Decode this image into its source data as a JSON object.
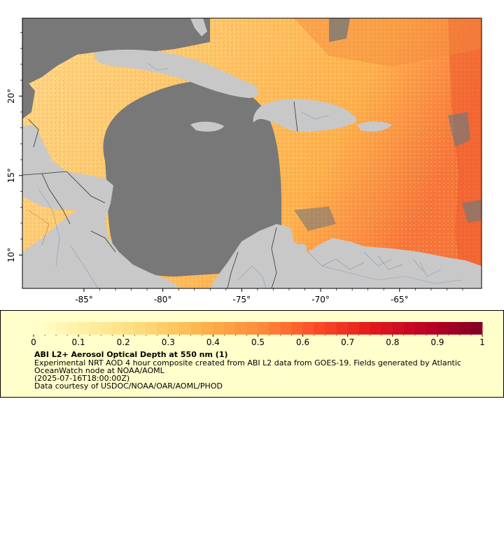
{
  "map": {
    "lon_ticks": [
      {
        "value": -85,
        "label": "-85°"
      },
      {
        "value": -80,
        "label": "-80°"
      },
      {
        "value": -75,
        "label": "-75°"
      },
      {
        "value": -70,
        "label": "-70°"
      },
      {
        "value": -65,
        "label": "-65°"
      }
    ],
    "lat_ticks": [
      {
        "value": 10,
        "label": "10°"
      },
      {
        "value": 15,
        "label": "15°"
      },
      {
        "value": 20,
        "label": "20°"
      }
    ],
    "extent": {
      "lon_min": -88.9,
      "lon_max": -59.8,
      "lat_min": 7.9,
      "lat_max": 24.9
    },
    "colors": {
      "land": "#c8c8c8",
      "nodata": "#787878",
      "rivers": "#7a9ec8",
      "borders": "#333333"
    }
  },
  "colorbar": {
    "min": 0,
    "max": 1,
    "tick_labels": [
      "0",
      "0.1",
      "0.2",
      "0.3",
      "0.4",
      "0.5",
      "0.6",
      "0.7",
      "0.8",
      "0.9",
      "1"
    ],
    "colormap_stops": [
      "#ffffcc",
      "#ffeda0",
      "#fed976",
      "#feb24c",
      "#fd8d3c",
      "#fc4e2a",
      "#e31a1c",
      "#bd0026",
      "#800026"
    ]
  },
  "legend": {
    "title": "ABI L2+ Aerosol Optical Depth at 550 nm (1)",
    "description": "Experimental NRT AOD 4 hour composite created from ABI L2 data from GOES-19. Fields generated by Atlantic OceanWatch node at NOAA/AOML",
    "date": "(2025-07-16T18:00:00Z)",
    "credit": "Data courtesy of USDOC/NOAA/OAR/AOML/PHOD"
  }
}
